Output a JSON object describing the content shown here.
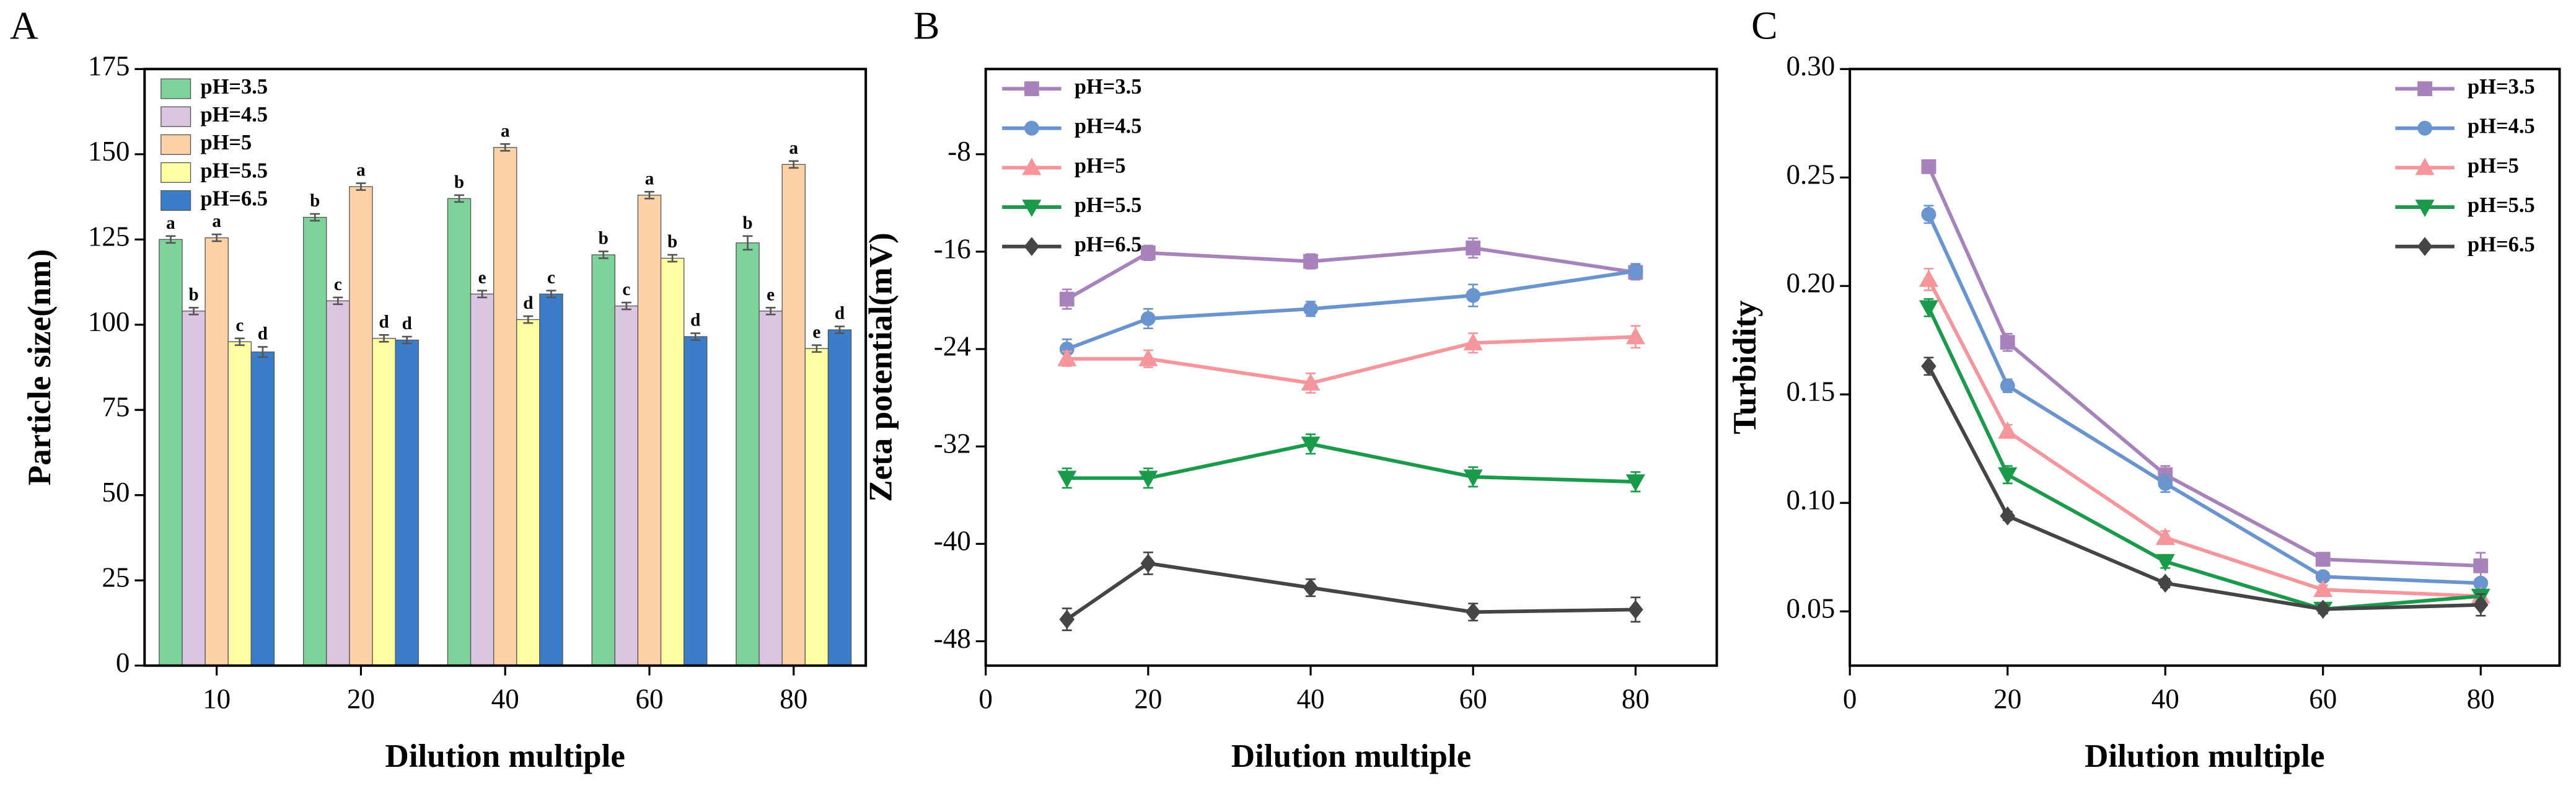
{
  "chart_data": [
    {
      "type": "bar",
      "panel": "A",
      "xlabel": "Dilution multiple",
      "ylabel": "Particle size(nm)",
      "categories": [
        "10",
        "20",
        "40",
        "60",
        "80"
      ],
      "ylim": [
        0,
        175
      ],
      "yticks": [
        0,
        25,
        50,
        75,
        100,
        125,
        150,
        175
      ],
      "legend": "upper left",
      "series": [
        {
          "name": "pH=3.5",
          "color": "#7dd39a",
          "values": [
            125,
            131.5,
            137,
            120.5,
            124
          ],
          "errors": [
            1,
            1,
            1,
            1,
            2
          ],
          "annotations": [
            "a",
            "b",
            "b",
            "b",
            "b"
          ]
        },
        {
          "name": "pH=4.5",
          "color": "#dbc6e2",
          "values": [
            104,
            107,
            109,
            105.5,
            104
          ],
          "errors": [
            1,
            1,
            1,
            1,
            1
          ],
          "annotations": [
            "b",
            "c",
            "e",
            "c",
            "e"
          ]
        },
        {
          "name": "pH=5",
          "color": "#fdd2a6",
          "values": [
            125.5,
            140.5,
            152,
            138,
            147
          ],
          "errors": [
            1,
            1,
            1,
            1,
            1
          ],
          "annotations": [
            "a",
            "a",
            "a",
            "a",
            "a"
          ]
        },
        {
          "name": "pH=5.5",
          "color": "#ffffa3",
          "values": [
            95,
            96,
            101.5,
            119.5,
            93
          ],
          "errors": [
            1,
            1,
            1,
            1,
            1
          ],
          "annotations": [
            "c",
            "d",
            "d",
            "b",
            "e"
          ]
        },
        {
          "name": "pH=6.5",
          "color": "#3b7dc8",
          "values": [
            92,
            95.5,
            109,
            96.5,
            98.5
          ],
          "errors": [
            1.5,
            1,
            1,
            1,
            1
          ],
          "annotations": [
            "d",
            "d",
            "c",
            "d",
            "d"
          ]
        }
      ]
    },
    {
      "type": "line",
      "panel": "B",
      "xlabel": "Dilution multiple",
      "ylabel": "Zeta potential(mV)",
      "x": [
        10,
        20,
        40,
        60,
        80
      ],
      "xlim": [
        0,
        90
      ],
      "xticks": [
        0,
        20,
        40,
        60,
        80
      ],
      "ylim": [
        -50,
        -1
      ],
      "yticks": [
        -48,
        -40,
        -32,
        -24,
        -16,
        -8
      ],
      "legend": "upper left",
      "series": [
        {
          "name": "pH=3.5",
          "color": "#a882bb",
          "marker": "square",
          "values": [
            -19.9,
            -16.1,
            -16.8,
            -15.7,
            -17.7
          ],
          "errors": [
            0.8,
            0.6,
            0.6,
            0.8,
            0.6
          ]
        },
        {
          "name": "pH=4.5",
          "color": "#6a94cd",
          "marker": "circle",
          "values": [
            -24.0,
            -21.5,
            -20.7,
            -19.6,
            -17.6
          ],
          "errors": [
            0.8,
            0.8,
            0.6,
            0.9,
            0.6
          ]
        },
        {
          "name": "pH=5",
          "color": "#f4969b",
          "marker": "triangle-up",
          "values": [
            -24.8,
            -24.8,
            -26.8,
            -23.5,
            -23.0
          ],
          "errors": [
            0.6,
            0.7,
            0.8,
            0.8,
            0.9
          ]
        },
        {
          "name": "pH=5.5",
          "color": "#1a9a4a",
          "marker": "triangle-down",
          "values": [
            -34.6,
            -34.6,
            -31.8,
            -34.5,
            -34.9
          ],
          "errors": [
            0.8,
            0.8,
            0.8,
            0.8,
            0.8
          ]
        },
        {
          "name": "pH=6.5",
          "color": "#454545",
          "marker": "diamond",
          "values": [
            -46.2,
            -41.6,
            -43.6,
            -45.6,
            -45.4
          ],
          "errors": [
            0.9,
            0.9,
            0.7,
            0.7,
            1.0
          ]
        }
      ]
    },
    {
      "type": "line",
      "panel": "C",
      "xlabel": "Dilution multiple",
      "ylabel": "Turbidity",
      "x": [
        10,
        20,
        40,
        60,
        80
      ],
      "xlim": [
        0,
        90
      ],
      "xticks": [
        0,
        20,
        40,
        60,
        80
      ],
      "ylim": [
        0.025,
        0.3
      ],
      "yticks": [
        0.05,
        {
          "value": 0.1,
          "label": "0.10"
        },
        0.15,
        {
          "value": 0.2,
          "label": "0.20"
        },
        0.25,
        {
          "value": 0.3,
          "label": "0.30"
        }
      ],
      "legend": "upper right",
      "series": [
        {
          "name": "pH=3.5",
          "color": "#a882bb",
          "marker": "square",
          "values": [
            0.255,
            0.174,
            0.113,
            0.074,
            0.071
          ],
          "errors": [
            0.003,
            0.004,
            0.004,
            0.003,
            0.006
          ]
        },
        {
          "name": "pH=4.5",
          "color": "#6a94cd",
          "marker": "circle",
          "values": [
            0.233,
            0.154,
            0.109,
            0.066,
            0.063
          ],
          "errors": [
            0.004,
            0.003,
            0.004,
            0.002,
            0.002
          ]
        },
        {
          "name": "pH=5",
          "color": "#f4969b",
          "marker": "triangle-up",
          "values": [
            0.203,
            0.133,
            0.084,
            0.06,
            0.057
          ],
          "errors": [
            0.005,
            0.003,
            0.003,
            0.002,
            0.002
          ]
        },
        {
          "name": "pH=5.5",
          "color": "#1a9a4a",
          "marker": "triangle-down",
          "values": [
            0.19,
            0.113,
            0.073,
            0.051,
            0.057
          ],
          "errors": [
            0.004,
            0.004,
            0.003,
            0.002,
            0.002
          ]
        },
        {
          "name": "pH=6.5",
          "color": "#454545",
          "marker": "diamond",
          "values": [
            0.163,
            0.094,
            0.063,
            0.051,
            0.053
          ],
          "errors": [
            0.004,
            0.002,
            0.002,
            0.002,
            0.005
          ]
        }
      ]
    }
  ]
}
